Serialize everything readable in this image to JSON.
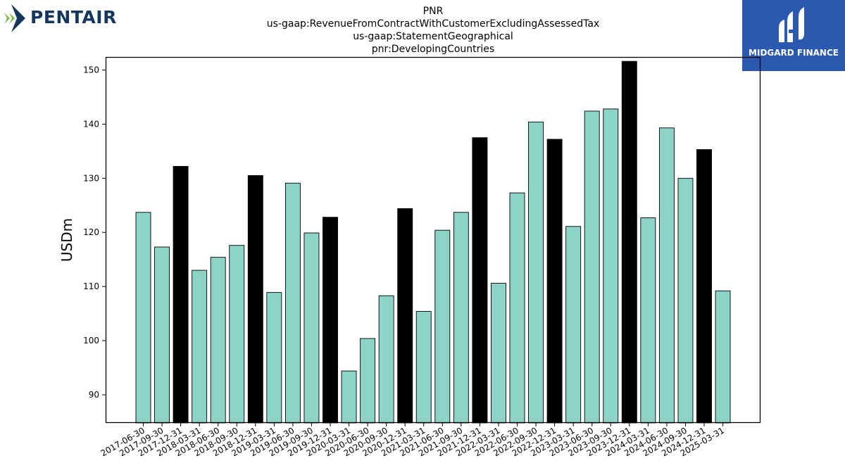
{
  "logos": {
    "left_brand": "PENTAIR",
    "right_brand": "MIDGARD FINANCE"
  },
  "title_lines": [
    "PNR",
    "us-gaap:RevenueFromContractWithCustomerExcludingAssessedTax",
    "us-gaap:StatementGeographical",
    "pnr:DevelopingCountries"
  ],
  "colors": {
    "quarter_bar": "#8dd3c7",
    "year_end_bar": "#000000",
    "bar_edge": "#000000",
    "pentair_green": "#7ab648",
    "pentair_navy": "#14375f",
    "midgard_blue": "#2b59b0"
  },
  "chart_data": {
    "type": "bar",
    "title": "PNR us-gaap:RevenueFromContractWithCustomerExcludingAssessedTax us-gaap:StatementGeographical pnr:DevelopingCountries",
    "xlabel": "",
    "ylabel": "USDm",
    "ylim": [
      84.8,
      152.4
    ],
    "yticks": [
      90,
      100,
      110,
      120,
      130,
      140,
      150
    ],
    "grid": false,
    "categories": [
      "2017-06-30",
      "2017-09-30",
      "2017-12-31",
      "2018-03-31",
      "2018-06-30",
      "2018-09-30",
      "2018-12-31",
      "2019-03-31",
      "2019-06-30",
      "2019-09-30",
      "2019-12-31",
      "2020-03-31",
      "2020-06-30",
      "2020-09-30",
      "2020-12-31",
      "2021-03-31",
      "2021-06-30",
      "2021-09-30",
      "2021-12-31",
      "2022-03-31",
      "2022-06-30",
      "2022-09-30",
      "2022-12-31",
      "2023-03-31",
      "2023-06-30",
      "2023-09-30",
      "2023-12-31",
      "2024-03-31",
      "2024-06-30",
      "2024-09-30",
      "2024-12-31",
      "2025-03-31"
    ],
    "values": [
      123.7,
      117.3,
      132.2,
      113.0,
      115.4,
      117.6,
      130.5,
      108.9,
      129.1,
      119.9,
      122.8,
      94.4,
      100.4,
      108.3,
      124.4,
      105.4,
      120.4,
      123.7,
      137.5,
      110.6,
      127.3,
      140.4,
      137.2,
      121.1,
      142.4,
      142.8,
      151.6,
      122.7,
      139.3,
      130.0,
      135.3,
      109.2
    ],
    "year_end_flags": [
      false,
      false,
      true,
      false,
      false,
      false,
      true,
      false,
      false,
      false,
      true,
      false,
      false,
      false,
      true,
      false,
      false,
      false,
      true,
      false,
      false,
      false,
      true,
      false,
      false,
      false,
      true,
      false,
      false,
      false,
      true,
      false
    ]
  }
}
